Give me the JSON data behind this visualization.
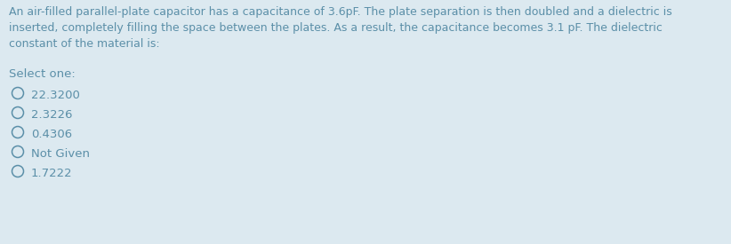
{
  "background_color": "#dce9f0",
  "question_text": [
    "An air-filled parallel-plate capacitor has a capacitance of 3.6pF. The plate separation is then doubled and a dielectric is",
    "inserted, completely filling the space between the plates. As a result, the capacitance becomes 3.1 pF. The dielectric",
    "constant of the material is:"
  ],
  "select_label": "Select one:",
  "options": [
    "22.3200",
    "2.3226",
    "0.4306",
    "Not Given",
    "1.7222"
  ],
  "text_color": "#5b8fa8",
  "font_size_question": 9.0,
  "font_size_options": 9.5,
  "font_size_select": 9.5
}
